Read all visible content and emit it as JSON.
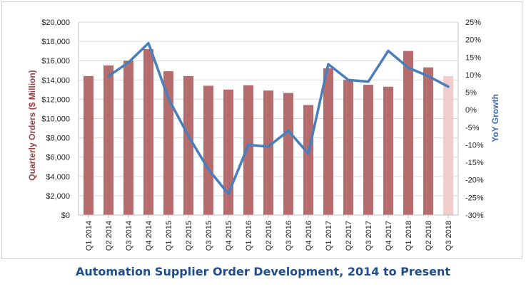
{
  "chart_data": {
    "type": "bar+line",
    "title": "Automation Supplier Order Development, 2014 to Present",
    "categories": [
      "Q1 2014",
      "Q2 2014",
      "Q3 2014",
      "Q4 2014",
      "Q1 2015",
      "Q2 2015",
      "Q3 2015",
      "Q4 2015",
      "Q1 2016",
      "Q2 2016",
      "Q3 2016",
      "Q4 2016",
      "Q1 2017",
      "Q2 2017",
      "Q3 2017",
      "Q4 2017",
      "Q1 2018",
      "Q2 2018",
      "Q3 2018"
    ],
    "series": [
      {
        "name": "Quarterly Orders ($ Million)",
        "type": "bar",
        "axis": "left",
        "color": "#b56c6c",
        "highlight_last_color": "#f2cccc",
        "values": [
          14400,
          15500,
          16000,
          17200,
          14900,
          14400,
          13400,
          13000,
          13450,
          12900,
          12650,
          11400,
          15200,
          14000,
          13500,
          13300,
          17000,
          15300,
          14400
        ]
      },
      {
        "name": "YoY Growth",
        "type": "line",
        "axis": "right",
        "color": "#4a7ebb",
        "values": [
          null,
          9.6,
          13.5,
          19.0,
          3.2,
          -7.5,
          -17.0,
          -24.0,
          -10.0,
          -10.5,
          -6.0,
          -12.5,
          13.0,
          8.5,
          8.0,
          16.8,
          12.0,
          9.6,
          6.6
        ]
      }
    ],
    "ylabel": "Quarterly Orders ($ Million)",
    "y2label": "YoY Growth",
    "ylim": [
      0,
      20000
    ],
    "y2lim": [
      -30,
      25
    ],
    "yticks": [
      "$0",
      "$2,000",
      "$4,000",
      "$6,000",
      "$8,000",
      "$10,000",
      "$12,000",
      "$14,000",
      "$16,000",
      "$18,000",
      "$20,000"
    ],
    "y2ticks": [
      "-30%",
      "-25%",
      "-20%",
      "-15%",
      "-10%",
      "-5%",
      "0%",
      "5%",
      "10%",
      "15%",
      "20%",
      "25%"
    ],
    "grid": true,
    "legend": "none"
  }
}
